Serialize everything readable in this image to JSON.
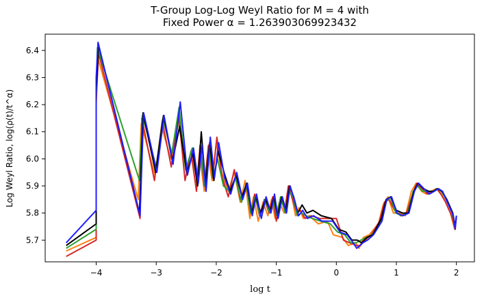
{
  "title": {
    "line1": "T-Group Log-Log Weyl Ratio for M = 4 with",
    "line2": "Fixed Power α = 1.263903069923432"
  },
  "chart_data": {
    "type": "line",
    "title": "T-Group Log-Log Weyl Ratio for M = 4 with Fixed Power α = 1.263903069923432",
    "xlabel": "log t",
    "ylabel": "Log Weyl Ratio, log(ρ(t)/t^α)",
    "xlim": [
      -4.85,
      2.3
    ],
    "ylim": [
      5.62,
      6.46
    ],
    "xticks": [
      -4,
      -3,
      -2,
      -1,
      0,
      1,
      2
    ],
    "xtick_labels": [
      "−4",
      "−3",
      "−2",
      "−1",
      "0",
      "1",
      "2"
    ],
    "yticks": [
      5.7,
      5.8,
      5.9,
      6.0,
      6.1,
      6.2,
      6.3,
      6.4
    ],
    "ytick_labels": [
      "5.7",
      "5.8",
      "5.9",
      "6.0",
      "6.1",
      "6.2",
      "6.3",
      "6.4"
    ],
    "grid": false,
    "legend": "none",
    "series": [
      {
        "color": "#ff7f0e",
        "x": [
          -4.5,
          -4.0,
          -4.0,
          -3.97,
          -3.3,
          -3.25,
          -3.02,
          -2.91,
          -2.76,
          -2.64,
          -2.5,
          -2.41,
          -2.34,
          -2.28,
          -2.2,
          -2.14,
          -2.07,
          -2.0,
          -1.91,
          -1.8,
          -1.7,
          -1.6,
          -1.52,
          -1.44,
          -1.38,
          -1.3,
          -1.22,
          -1.14,
          -1.08,
          -1.02,
          -0.95,
          -0.87,
          -0.8,
          -0.74,
          -0.68,
          -0.62,
          -0.55,
          -0.45,
          -0.3,
          -0.15,
          -0.05,
          0.1,
          0.2,
          0.32,
          0.38,
          0.45,
          0.55,
          0.7,
          0.78,
          0.86,
          0.95,
          1.05,
          1.15,
          1.25,
          1.33,
          1.42,
          1.5,
          1.58,
          1.66,
          1.72,
          1.8,
          1.9,
          1.97,
          2.0
        ],
        "y": [
          5.66,
          5.71,
          6.2,
          6.37,
          5.85,
          6.13,
          5.94,
          6.12,
          6.0,
          6.15,
          5.95,
          6.0,
          5.9,
          6.02,
          5.88,
          6.02,
          5.92,
          6.06,
          5.95,
          5.88,
          5.95,
          5.84,
          5.92,
          5.78,
          5.86,
          5.77,
          5.84,
          5.79,
          5.85,
          5.78,
          5.84,
          5.8,
          5.89,
          5.86,
          5.79,
          5.82,
          5.78,
          5.79,
          5.76,
          5.77,
          5.72,
          5.71,
          5.68,
          5.69,
          5.67,
          5.71,
          5.72,
          5.76,
          5.83,
          5.86,
          5.8,
          5.8,
          5.79,
          5.88,
          5.91,
          5.88,
          5.87,
          5.88,
          5.89,
          5.88,
          5.85,
          5.8,
          5.74,
          5.78
        ]
      },
      {
        "color": "#d62728",
        "x": [
          -4.5,
          -4.0,
          -4.0,
          -3.96,
          -3.27,
          -3.24,
          -3.03,
          -2.9,
          -2.75,
          -2.63,
          -2.52,
          -2.42,
          -2.33,
          -2.27,
          -2.2,
          -2.13,
          -2.06,
          -1.99,
          -1.9,
          -1.8,
          -1.7,
          -1.6,
          -1.5,
          -1.42,
          -1.36,
          -1.28,
          -1.2,
          -1.12,
          -1.06,
          -1.0,
          -0.92,
          -0.86,
          -0.8,
          -0.73,
          -0.66,
          -0.6,
          -0.52,
          -0.42,
          -0.28,
          -0.12,
          0.0,
          0.12,
          0.22,
          0.34,
          0.4,
          0.48,
          0.58,
          0.72,
          0.8,
          0.88,
          0.97,
          1.07,
          1.17,
          1.27,
          1.34,
          1.43,
          1.52,
          1.6,
          1.67,
          1.74,
          1.82,
          1.92,
          1.98,
          2.0
        ],
        "y": [
          5.64,
          5.7,
          6.22,
          6.39,
          5.78,
          6.15,
          5.92,
          6.14,
          5.97,
          6.17,
          5.92,
          6.03,
          5.88,
          6.05,
          5.9,
          6.05,
          5.93,
          6.08,
          5.93,
          5.86,
          5.96,
          5.85,
          5.9,
          5.8,
          5.87,
          5.79,
          5.85,
          5.8,
          5.86,
          5.77,
          5.85,
          5.81,
          5.9,
          5.85,
          5.8,
          5.81,
          5.78,
          5.79,
          5.78,
          5.78,
          5.78,
          5.7,
          5.69,
          5.68,
          5.68,
          5.7,
          5.72,
          5.77,
          5.84,
          5.85,
          5.81,
          5.79,
          5.8,
          5.87,
          5.91,
          5.89,
          5.87,
          5.88,
          5.89,
          5.87,
          5.84,
          5.79,
          5.74,
          5.79
        ]
      },
      {
        "color": "#2ca02c",
        "x": [
          -4.5,
          -4.0,
          -4.0,
          -3.98,
          -3.28,
          -3.23,
          -3.0,
          -2.89,
          -2.74,
          -2.62,
          -2.51,
          -2.4,
          -2.32,
          -2.26,
          -2.19,
          -2.12,
          -2.05,
          -1.98,
          -1.88,
          -1.78,
          -1.68,
          -1.58,
          -1.5,
          -1.43,
          -1.35,
          -1.27,
          -1.19,
          -1.11,
          -1.05,
          -0.99,
          -0.93,
          -0.85,
          -0.79,
          -0.72,
          -0.65,
          -0.58,
          -0.5,
          -0.4,
          -0.26,
          -0.1,
          0.02,
          0.14,
          0.24,
          0.33,
          0.41,
          0.5,
          0.6,
          0.74,
          0.82,
          0.9,
          0.99,
          1.09,
          1.19,
          1.28,
          1.35,
          1.44,
          1.53,
          1.61,
          1.68,
          1.75,
          1.83,
          1.93,
          1.98,
          2.0
        ],
        "y": [
          5.67,
          5.74,
          6.23,
          6.41,
          5.92,
          6.16,
          5.97,
          6.15,
          6.02,
          6.19,
          5.96,
          6.04,
          5.92,
          6.03,
          5.9,
          6.04,
          5.93,
          6.0,
          5.9,
          5.88,
          5.93,
          5.84,
          5.91,
          5.8,
          5.86,
          5.79,
          5.85,
          5.8,
          5.85,
          5.79,
          5.86,
          5.8,
          5.88,
          5.86,
          5.79,
          5.8,
          5.79,
          5.78,
          5.77,
          5.76,
          5.73,
          5.72,
          5.69,
          5.69,
          5.7,
          5.71,
          5.72,
          5.77,
          5.84,
          5.86,
          5.8,
          5.79,
          5.8,
          5.88,
          5.9,
          5.88,
          5.88,
          5.88,
          5.89,
          5.88,
          5.85,
          5.8,
          5.75,
          5.79
        ]
      },
      {
        "color": "#000000",
        "x": [
          -4.5,
          -4.0,
          -4.0,
          -3.96,
          -3.28,
          -3.22,
          -3.01,
          -2.88,
          -2.73,
          -2.61,
          -2.49,
          -2.39,
          -2.31,
          -2.25,
          -2.18,
          -2.11,
          -2.04,
          -1.97,
          -1.87,
          -1.77,
          -1.67,
          -1.57,
          -1.49,
          -1.41,
          -1.34,
          -1.26,
          -1.18,
          -1.1,
          -1.04,
          -0.98,
          -0.91,
          -0.84,
          -0.78,
          -0.71,
          -0.64,
          -0.57,
          -0.49,
          -0.39,
          -0.25,
          -0.08,
          0.04,
          0.16,
          0.26,
          0.35,
          0.42,
          0.51,
          0.61,
          0.75,
          0.83,
          0.91,
          1.0,
          1.1,
          1.2,
          1.29,
          1.36,
          1.45,
          1.54,
          1.62,
          1.69,
          1.76,
          1.84,
          1.94,
          1.98,
          2.0
        ],
        "y": [
          5.68,
          5.76,
          6.25,
          6.42,
          5.8,
          6.17,
          5.95,
          6.16,
          5.99,
          6.12,
          5.95,
          6.02,
          5.9,
          6.1,
          5.91,
          6.06,
          5.92,
          6.03,
          5.95,
          5.88,
          5.94,
          5.86,
          5.91,
          5.8,
          5.86,
          5.8,
          5.85,
          5.81,
          5.86,
          5.79,
          5.86,
          5.81,
          5.9,
          5.86,
          5.8,
          5.83,
          5.8,
          5.81,
          5.79,
          5.78,
          5.74,
          5.73,
          5.7,
          5.7,
          5.69,
          5.71,
          5.72,
          5.78,
          5.85,
          5.86,
          5.81,
          5.8,
          5.8,
          5.88,
          5.91,
          5.89,
          5.88,
          5.88,
          5.89,
          5.88,
          5.85,
          5.8,
          5.75,
          5.79
        ]
      },
      {
        "color": "#1f1fff",
        "x": [
          -4.5,
          -4.0,
          -4.0,
          -3.97,
          -3.27,
          -3.21,
          -2.99,
          -2.87,
          -2.72,
          -2.6,
          -2.48,
          -2.38,
          -2.3,
          -2.24,
          -2.17,
          -2.1,
          -2.03,
          -1.96,
          -1.86,
          -1.76,
          -1.66,
          -1.56,
          -1.48,
          -1.4,
          -1.33,
          -1.25,
          -1.17,
          -1.09,
          -1.03,
          -0.97,
          -0.9,
          -0.83,
          -0.77,
          -0.7,
          -0.63,
          -0.56,
          -0.48,
          -0.38,
          -0.24,
          -0.06,
          0.06,
          0.18,
          0.28,
          0.34,
          0.44,
          0.52,
          0.62,
          0.76,
          0.84,
          0.92,
          1.01,
          1.11,
          1.21,
          1.3,
          1.37,
          1.46,
          1.55,
          1.63,
          1.7,
          1.77,
          1.85,
          1.95,
          1.98,
          2.0
        ],
        "y": [
          5.69,
          5.81,
          6.3,
          6.43,
          5.79,
          6.17,
          5.95,
          6.16,
          5.98,
          6.21,
          5.94,
          6.04,
          5.91,
          6.05,
          5.88,
          6.08,
          5.93,
          6.06,
          5.93,
          5.87,
          5.95,
          5.85,
          5.91,
          5.79,
          5.87,
          5.78,
          5.86,
          5.8,
          5.87,
          5.78,
          5.86,
          5.8,
          5.9,
          5.85,
          5.79,
          5.81,
          5.78,
          5.79,
          5.77,
          5.77,
          5.73,
          5.72,
          5.69,
          5.67,
          5.69,
          5.7,
          5.72,
          5.77,
          5.85,
          5.86,
          5.8,
          5.79,
          5.8,
          5.88,
          5.91,
          5.89,
          5.87,
          5.88,
          5.89,
          5.88,
          5.84,
          5.79,
          5.74,
          5.79
        ]
      }
    ]
  }
}
